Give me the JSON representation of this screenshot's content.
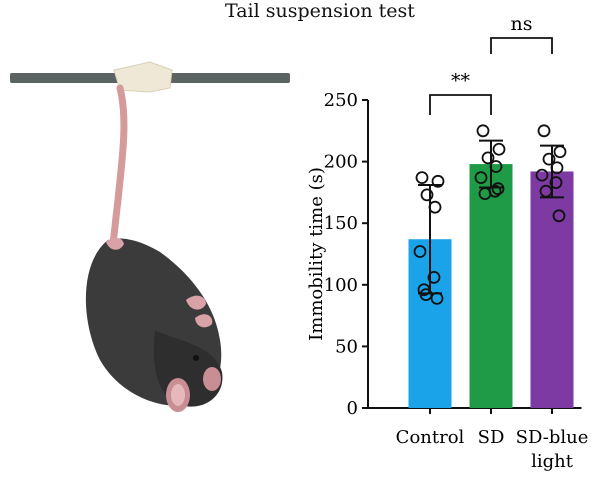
{
  "figure": {
    "title": "Tail suspension test"
  },
  "illustration": {
    "subject": "mouse-icon",
    "bar": "suspension-bar-icon",
    "tape": "tape-icon",
    "colors": {
      "body": "#3c3b3b",
      "tail": "#d59a9a",
      "bar": "#5c6363",
      "tape": "#efe8d6"
    }
  },
  "chart_data": {
    "type": "bar",
    "ylabel": "Immobility time (s)",
    "ylim": [
      0,
      250
    ],
    "yticks": [
      0,
      50,
      100,
      150,
      200,
      250
    ],
    "categories": [
      "Control",
      "SD",
      "SD-blue\nlight"
    ],
    "values": [
      137,
      198,
      192
    ],
    "error": [
      44,
      19,
      21
    ],
    "colors": [
      "#1aa3e8",
      "#1f9b48",
      "#7d3aa3"
    ],
    "points": [
      [
        187,
        184,
        173,
        163,
        127,
        106,
        96,
        89,
        92
      ],
      [
        225,
        210,
        203,
        196,
        187,
        176,
        174,
        178
      ],
      [
        225,
        208,
        202,
        195,
        189,
        183,
        176,
        156
      ]
    ],
    "significance": [
      {
        "between": [
          0,
          1
        ],
        "label": "**"
      },
      {
        "between": [
          1,
          2
        ],
        "label": "ns"
      }
    ]
  }
}
